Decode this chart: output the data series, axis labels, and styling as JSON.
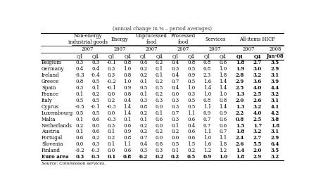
{
  "title": "(annual change in % – period averages)",
  "source": "Source: Commission services.",
  "group_labels": [
    "Non-energy\nindustrial goods",
    "Energy",
    "Unprocessed\nfood",
    "Processed\nfood",
    "Services",
    "All-items HICP"
  ],
  "group_col_starts": [
    1,
    3,
    5,
    7,
    9,
    11
  ],
  "group_col_ends": [
    2,
    4,
    6,
    8,
    10,
    13
  ],
  "year_info": [
    {
      "label": "2007",
      "cs": 1,
      "ce": 2
    },
    {
      "label": "2007",
      "cs": 3,
      "ce": 4
    },
    {
      "label": "2007",
      "cs": 5,
      "ce": 6
    },
    {
      "label": "2007",
      "cs": 7,
      "ce": 8
    },
    {
      "label": "2007",
      "cs": 9,
      "ce": 10
    },
    {
      "label": "2007",
      "cs": 11,
      "ce": 12
    },
    {
      "label": "2008",
      "cs": 13,
      "ce": 13
    }
  ],
  "col_headers": [
    "Q1",
    "Q4",
    "Q1",
    "Q4",
    "Q1",
    "Q4",
    "Q1",
    "Q4",
    "Q1",
    "Q4",
    "Q1",
    "Q4",
    "Jan-08"
  ],
  "col_widths_rel": [
    1.85,
    0.95,
    0.95,
    0.95,
    0.95,
    0.95,
    0.95,
    0.95,
    0.95,
    0.95,
    0.95,
    1.05,
    1.05,
    1.05
  ],
  "rows": [
    {
      "country": "Belgium",
      "bold_c": false,
      "vals": [
        0.3,
        0.3,
        -0.1,
        0.8,
        0.4,
        0.2,
        0.4,
        0.8,
        0.8,
        0.6,
        1.8,
        2.7,
        3.5
      ]
    },
    {
      "country": "Germany",
      "bold_c": false,
      "vals": [
        0.4,
        0.4,
        0.3,
        1.0,
        0.2,
        0.1,
        0.3,
        0.5,
        0.8,
        1.0,
        1.9,
        3.0,
        2.9
      ]
    },
    {
      "country": "Ireland",
      "bold_c": false,
      "vals": [
        -0.3,
        -0.4,
        0.3,
        0.8,
        0.2,
        0.1,
        0.4,
        0.9,
        2.3,
        1.8,
        2.8,
        3.2,
        3.1
      ]
    },
    {
      "country": "Greece",
      "bold_c": false,
      "vals": [
        0.8,
        0.5,
        -0.2,
        1.0,
        0.1,
        0.2,
        0.7,
        0.5,
        1.6,
        1.4,
        2.9,
        3.6,
        3.9
      ]
    },
    {
      "country": "Spain",
      "bold_c": false,
      "vals": [
        0.3,
        0.1,
        -0.1,
        0.9,
        0.5,
        0.5,
        0.4,
        1.0,
        1.4,
        1.4,
        2.5,
        4.0,
        4.4
      ]
    },
    {
      "country": "France",
      "bold_c": false,
      "vals": [
        0.1,
        0.2,
        0.0,
        0.8,
        0.1,
        0.2,
        0.0,
        0.3,
        1.0,
        1.0,
        1.3,
        2.5,
        3.2
      ]
    },
    {
      "country": "Italy",
      "bold_c": false,
      "vals": [
        0.5,
        0.5,
        0.2,
        0.4,
        0.3,
        0.3,
        0.3,
        0.5,
        0.8,
        0.8,
        2.0,
        2.6,
        3.1
      ]
    },
    {
      "country": "Cyprus",
      "bold_c": false,
      "vals": [
        -0.5,
        -0.1,
        -0.3,
        1.4,
        0.8,
        0.0,
        0.3,
        0.5,
        1.1,
        1.4,
        1.3,
        3.2,
        4.1
      ]
    },
    {
      "country": "Luxembourg",
      "bold_c": false,
      "vals": [
        0.5,
        0.5,
        0.0,
        1.4,
        0.2,
        0.1,
        0.7,
        1.1,
        0.9,
        0.9,
        2.2,
        4.0,
        4.2
      ]
    },
    {
      "country": "Malta",
      "bold_c": false,
      "vals": [
        0.1,
        0.6,
        -0.3,
        0.1,
        0.1,
        0.6,
        0.3,
        0.6,
        0.7,
        0.6,
        0.8,
        2.5,
        3.8
      ]
    },
    {
      "country": "Netherlands",
      "bold_c": false,
      "vals": [
        0.2,
        0.0,
        0.3,
        0.6,
        0.2,
        0.0,
        0.1,
        0.4,
        0.7,
        0.6,
        1.5,
        1.7,
        1.8
      ]
    },
    {
      "country": "Austria",
      "bold_c": false,
      "vals": [
        0.1,
        0.6,
        0.1,
        0.9,
        0.2,
        0.2,
        0.2,
        0.6,
        1.1,
        0.7,
        1.8,
        3.2,
        3.1
      ]
    },
    {
      "country": "Portugal",
      "bold_c": false,
      "vals": [
        0.6,
        0.2,
        0.2,
        0.8,
        0.7,
        0.0,
        0.0,
        0.6,
        1.0,
        1.1,
        2.4,
        2.7,
        2.9
      ]
    },
    {
      "country": "Slovenia",
      "bold_c": false,
      "vals": [
        0.0,
        0.3,
        0.1,
        1.1,
        0.4,
        0.8,
        0.5,
        1.5,
        1.6,
        1.8,
        2.6,
        5.5,
        6.4
      ]
    },
    {
      "country": "Finland",
      "bold_c": false,
      "vals": [
        -0.2,
        -0.3,
        0.0,
        0.6,
        0.3,
        0.3,
        0.1,
        0.2,
        1.2,
        1.2,
        1.4,
        2.0,
        3.5
      ]
    },
    {
      "country": "Euro area",
      "bold_c": true,
      "vals": [
        0.3,
        0.3,
        0.1,
        0.8,
        0.2,
        0.2,
        0.2,
        0.5,
        0.9,
        1.0,
        1.8,
        2.9,
        3.2
      ]
    }
  ]
}
